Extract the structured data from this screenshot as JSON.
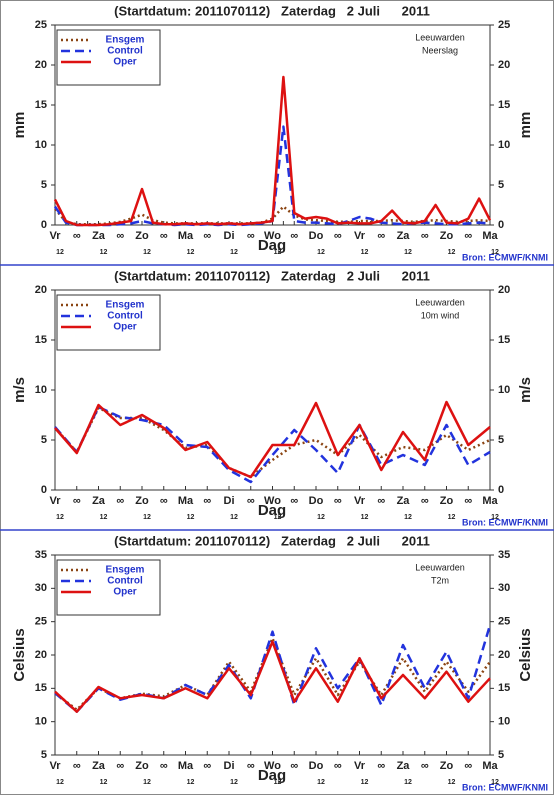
{
  "chart_data": [
    {
      "type": "line",
      "title": "(Startdatum: 2011070112)   Zaterdag   2 Juli      2011",
      "station": "Leeuwarden",
      "variable": "Neerslag",
      "ylabel": "mm",
      "y2label": "mm",
      "xlabel": "Dag",
      "source": "Bron: ECMWF/KNMI",
      "categories": [
        "Vr",
        null,
        "∞",
        null,
        "Za",
        null,
        "∞",
        null,
        "Zo",
        null,
        "∞",
        null,
        "Ma",
        null,
        "∞",
        null,
        "Di",
        null,
        "∞",
        null,
        "Wo",
        null,
        "∞",
        null,
        "Do",
        null,
        "∞",
        null,
        "Vr",
        null,
        "∞",
        null,
        "Za",
        null,
        "∞",
        null,
        "Zo",
        null,
        "∞",
        null,
        "Ma"
      ],
      "x_sublabels": [
        "12",
        "12",
        "12",
        "12",
        "12",
        "12",
        "12",
        "12",
        "12",
        "12",
        "12"
      ],
      "ylim": [
        0,
        25
      ],
      "yticks": [
        0,
        5,
        10,
        15,
        20,
        25
      ],
      "y2lim": [
        0,
        25
      ],
      "y2ticks": [
        0,
        5,
        10,
        15,
        20,
        25
      ],
      "series": [
        {
          "name": "Ensgem",
          "color": "#8b4513",
          "style": "dotted",
          "values": [
            2.0,
            0.4,
            0.1,
            0.1,
            0.1,
            0.2,
            0.4,
            0.8,
            1.3,
            0.6,
            0.3,
            0.2,
            0.2,
            0.2,
            0.2,
            0.2,
            0.2,
            0.2,
            0.2,
            0.3,
            0.8,
            2.3,
            1.2,
            0.7,
            0.6,
            0.5,
            0.4,
            0.4,
            0.5,
            0.5,
            0.5,
            0.6,
            0.5,
            0.4,
            0.5,
            0.6,
            0.5,
            0.4,
            0.5,
            0.6,
            0.5
          ]
        },
        {
          "name": "Control",
          "color": "#2233dd",
          "style": "dashed",
          "values": [
            2.3,
            0.3,
            0,
            0,
            0,
            0,
            0.1,
            0.2,
            0.5,
            0.2,
            0.1,
            0,
            0.1,
            0,
            0.1,
            0,
            0.1,
            0,
            0.1,
            0.2,
            0.5,
            12.3,
            0.5,
            0.3,
            0.3,
            0.2,
            0.1,
            0.5,
            1.0,
            0.8,
            0.3,
            0.2,
            0.1,
            0.2,
            0.3,
            0.2,
            0.1,
            0.1,
            0.2,
            0.3,
            0.2
          ]
        },
        {
          "name": "Oper",
          "color": "#dd1111",
          "style": "solid",
          "values": [
            3.2,
            0.5,
            0,
            0,
            0,
            0.1,
            0.3,
            0.5,
            4.5,
            0.3,
            0.1,
            0.1,
            0.2,
            0.1,
            0.2,
            0.1,
            0.2,
            0.1,
            0.2,
            0.3,
            0.5,
            18.5,
            1.5,
            0.8,
            1.0,
            0.8,
            0.2,
            0.3,
            0.2,
            0.2,
            0.5,
            1.8,
            0.3,
            0.2,
            0.5,
            2.5,
            0.3,
            0.2,
            0.8,
            3.3,
            0.6
          ]
        }
      ]
    },
    {
      "type": "line",
      "title": "(Startdatum: 2011070112)   Zaterdag   2 Juli      2011",
      "station": "Leeuwarden",
      "variable": "10m wind",
      "ylabel": "m/s",
      "y2label": "m/s",
      "xlabel": "Dag",
      "source": "Bron: ECMWF/KNMI",
      "categories": [
        "Vr",
        "∞",
        "Za",
        "∞",
        "Zo",
        "∞",
        "Ma",
        "∞",
        "Di",
        "∞",
        "Wo",
        "∞",
        "Do",
        "∞",
        "Vr",
        "∞",
        "Za",
        "∞",
        "Zo",
        "∞",
        "Ma"
      ],
      "x_sublabels": [
        "12",
        "12",
        "12",
        "12",
        "12",
        "12",
        "12",
        "12",
        "12",
        "12",
        "12"
      ],
      "ylim": [
        0,
        20
      ],
      "yticks": [
        0,
        5,
        10,
        15,
        20
      ],
      "y2lim": [
        0,
        20
      ],
      "y2ticks": [
        0,
        5,
        10,
        15,
        20
      ],
      "series": [
        {
          "name": "Ensgem",
          "color": "#8b4513",
          "style": "dotted",
          "values": [
            6.2,
            3.8,
            8.2,
            7.2,
            7.2,
            6.0,
            4.2,
            4.5,
            2.2,
            1.3,
            3.0,
            4.5,
            5.0,
            3.5,
            5.5,
            3.3,
            4.3,
            4.0,
            5.5,
            4.0,
            5.0
          ]
        },
        {
          "name": "Control",
          "color": "#2233dd",
          "style": "dashed",
          "values": [
            6.3,
            3.8,
            8.3,
            7.3,
            7.0,
            6.5,
            4.5,
            4.3,
            2.0,
            0.8,
            3.5,
            6.0,
            4.0,
            1.7,
            6.5,
            2.5,
            3.5,
            2.5,
            6.5,
            2.5,
            3.8
          ]
        },
        {
          "name": "Oper",
          "color": "#dd1111",
          "style": "solid",
          "values": [
            6.2,
            3.7,
            8.5,
            6.5,
            7.5,
            6.2,
            4.0,
            4.8,
            2.2,
            1.3,
            4.5,
            4.5,
            8.7,
            3.5,
            6.5,
            2.0,
            5.8,
            3.0,
            8.8,
            4.5,
            6.3
          ]
        }
      ]
    },
    {
      "type": "line",
      "title": "(Startdatum: 2011070112)   Zaterdag   2 Juli      2011",
      "station": "Leeuwarden",
      "variable": "T2m",
      "ylabel": "Celsius",
      "y2label": "Celsius",
      "xlabel": "Dag",
      "source": "Bron: ECMWF/KNMI",
      "categories": [
        "Vr",
        "∞",
        "Za",
        "∞",
        "Zo",
        "∞",
        "Ma",
        "∞",
        "Di",
        "∞",
        "Wo",
        "∞",
        "Do",
        "∞",
        "Vr",
        "∞",
        "Za",
        "∞",
        "Zo",
        "∞",
        "Ma"
      ],
      "x_sublabels": [
        "12",
        "12",
        "12",
        "12",
        "12",
        "12",
        "12",
        "12",
        "12",
        "12",
        "12"
      ],
      "ylim": [
        5,
        35
      ],
      "yticks": [
        5,
        10,
        15,
        20,
        25,
        30,
        35
      ],
      "y2lim": [
        5,
        35
      ],
      "y2ticks": [
        5,
        10,
        15,
        20,
        25,
        30,
        35
      ],
      "series": [
        {
          "name": "Ensgem",
          "color": "#8b4513",
          "style": "dotted",
          "values": [
            14.3,
            11.8,
            15.0,
            13.5,
            14.2,
            13.8,
            15.5,
            14.0,
            19.0,
            14.5,
            22.5,
            14.0,
            19.5,
            14.0,
            19.0,
            14.0,
            19.5,
            14.5,
            19.0,
            14.5,
            19.0
          ]
        },
        {
          "name": "Control",
          "color": "#2233dd",
          "style": "dashed",
          "values": [
            14.3,
            11.5,
            15.0,
            13.3,
            14.2,
            13.5,
            15.5,
            14.0,
            18.5,
            13.5,
            23.5,
            12.5,
            21.0,
            15.0,
            19.5,
            12.5,
            21.5,
            15.0,
            20.5,
            13.5,
            24.5
          ]
        },
        {
          "name": "Oper",
          "color": "#dd1111",
          "style": "solid",
          "values": [
            14.5,
            11.5,
            15.2,
            13.5,
            14.0,
            13.5,
            15.0,
            13.5,
            18.0,
            14.0,
            22.0,
            13.0,
            18.0,
            13.0,
            19.5,
            13.5,
            17.0,
            13.5,
            17.5,
            13.0,
            16.5
          ]
        }
      ]
    }
  ]
}
